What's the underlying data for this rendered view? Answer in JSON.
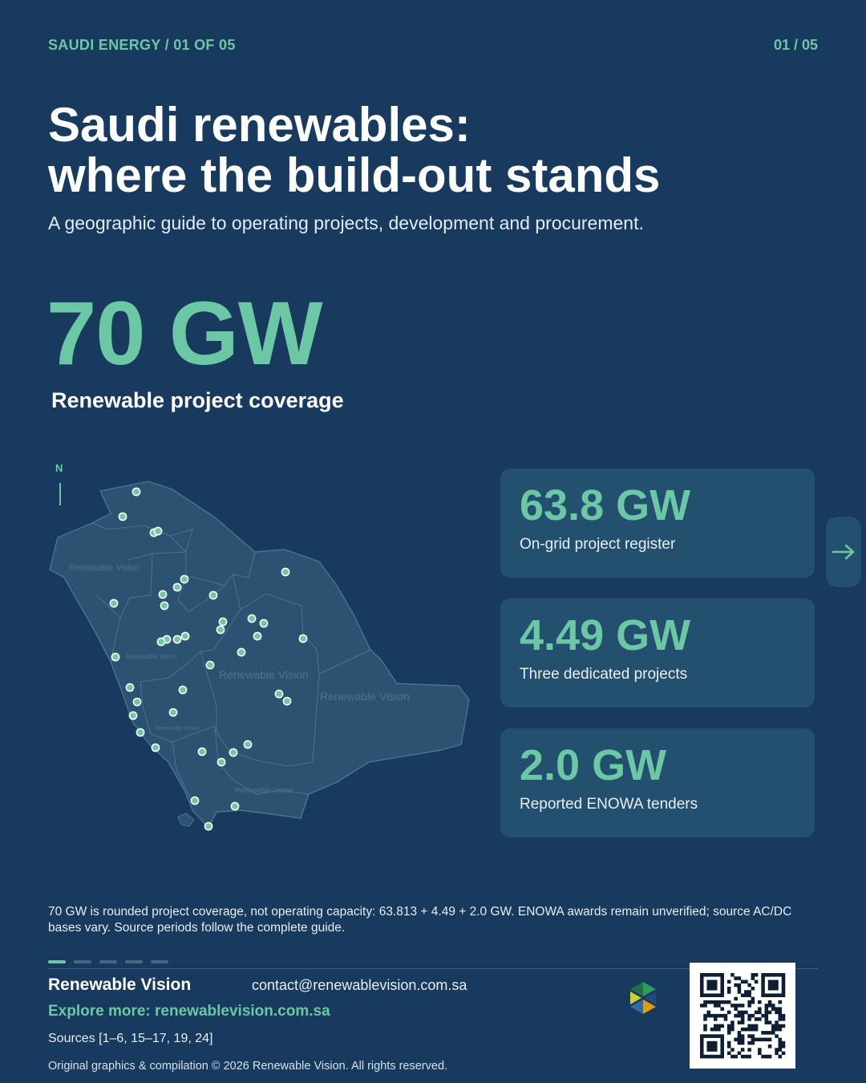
{
  "header": {
    "kicker": "SAUDI ENERGY / 01 OF 05",
    "pager": "01 / 05"
  },
  "title": {
    "line1": "Saudi renewables:",
    "line2": "where the build-out stands",
    "subtitle": "A geographic guide to operating projects, development and procurement."
  },
  "hero": {
    "value": "70 GW",
    "label": "Renewable project coverage"
  },
  "map": {
    "compass_label": "N",
    "watermarks": [
      "Renewable Vision",
      "Renewable Vision",
      "Renewable Vision",
      "Renewable Vision",
      "Renewable Vision",
      "Renewable Vision"
    ],
    "project_marker_count": 40
  },
  "stats": [
    {
      "value": "63.8 GW",
      "label": "On-grid project register"
    },
    {
      "value": "4.49 GW",
      "label": "Three dedicated projects"
    },
    {
      "value": "2.0 GW",
      "label": "Reported ENOWA tenders"
    }
  ],
  "next_button": {
    "icon": "arrow-right-icon"
  },
  "footnote": "70 GW is rounded project coverage, not operating capacity: 63.813 + 4.49 + 2.0 GW. ENOWA awards remain unverified; source AC/DC bases vary. Source periods follow the complete guide.",
  "pagination": {
    "total": 5,
    "active": 1
  },
  "footer": {
    "brand": "Renewable Vision",
    "contact": "contact@renewablevision.com.sa",
    "explore": "Explore more: renewablevision.com.sa",
    "sources": "Sources [1–6, 15–17, 19, 24]",
    "copyright": "Original graphics & compilation © 2026 Renewable Vision. All rights reserved."
  },
  "colors": {
    "background": "#173a5e",
    "accent": "#6cc7a5",
    "card": "#24506f",
    "map_fill": "#2b5270"
  }
}
